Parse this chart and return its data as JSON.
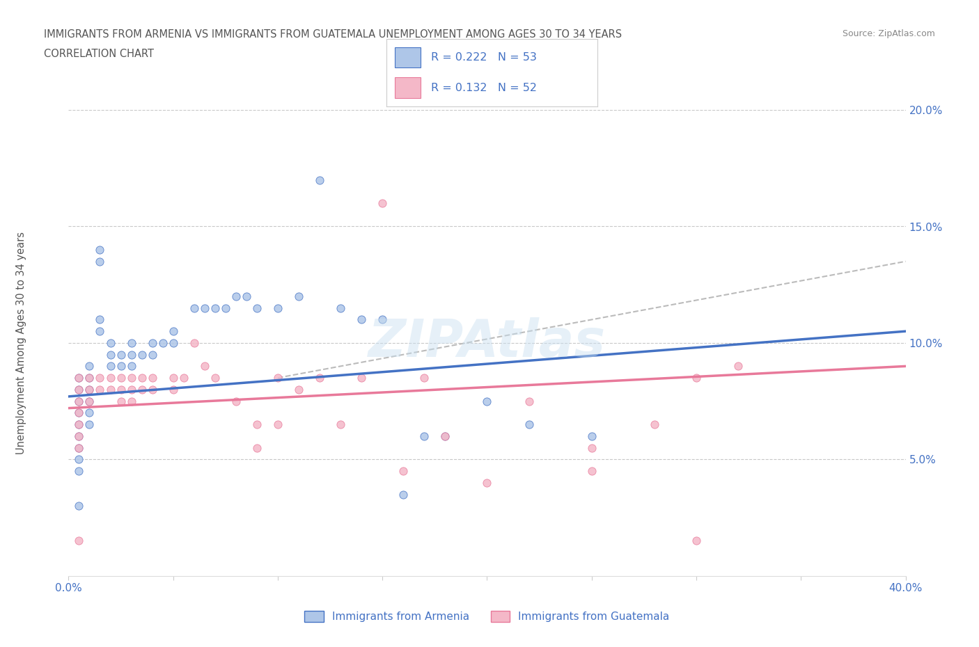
{
  "title_line1": "IMMIGRANTS FROM ARMENIA VS IMMIGRANTS FROM GUATEMALA UNEMPLOYMENT AMONG AGES 30 TO 34 YEARS",
  "title_line2": "CORRELATION CHART",
  "source_text": "Source: ZipAtlas.com",
  "ylabel": "Unemployment Among Ages 30 to 34 years",
  "xlim": [
    0.0,
    0.4
  ],
  "ylim": [
    0.0,
    0.2
  ],
  "xticks": [
    0.0,
    0.05,
    0.1,
    0.15,
    0.2,
    0.25,
    0.3,
    0.35,
    0.4
  ],
  "yticks_right": [
    0.05,
    0.1,
    0.15,
    0.2
  ],
  "ytick_right_labels": [
    "5.0%",
    "10.0%",
    "15.0%",
    "20.0%"
  ],
  "armenia_color": "#aec6e8",
  "guatemala_color": "#f4b8c8",
  "armenia_line_color": "#4472c4",
  "guatemala_line_color": "#e8799a",
  "dashed_line_color": "#bbbbbb",
  "R_armenia": 0.222,
  "N_armenia": 53,
  "R_guatemala": 0.132,
  "N_guatemala": 52,
  "legend_label_armenia": "Immigrants from Armenia",
  "legend_label_guatemala": "Immigrants from Guatemala",
  "watermark": "ZIPAtlas",
  "background_color": "#ffffff",
  "grid_color": "#c8c8c8",
  "title_color": "#555555",
  "axis_label_color": "#4472c4",
  "armenia_scatter": [
    [
      0.005,
      0.085
    ],
    [
      0.005,
      0.08
    ],
    [
      0.005,
      0.075
    ],
    [
      0.005,
      0.07
    ],
    [
      0.005,
      0.065
    ],
    [
      0.005,
      0.06
    ],
    [
      0.005,
      0.055
    ],
    [
      0.005,
      0.05
    ],
    [
      0.005,
      0.045
    ],
    [
      0.01,
      0.09
    ],
    [
      0.01,
      0.085
    ],
    [
      0.01,
      0.08
    ],
    [
      0.01,
      0.075
    ],
    [
      0.01,
      0.07
    ],
    [
      0.01,
      0.065
    ],
    [
      0.015,
      0.14
    ],
    [
      0.015,
      0.135
    ],
    [
      0.015,
      0.11
    ],
    [
      0.015,
      0.105
    ],
    [
      0.02,
      0.1
    ],
    [
      0.02,
      0.095
    ],
    [
      0.02,
      0.09
    ],
    [
      0.025,
      0.095
    ],
    [
      0.025,
      0.09
    ],
    [
      0.03,
      0.1
    ],
    [
      0.03,
      0.095
    ],
    [
      0.03,
      0.09
    ],
    [
      0.035,
      0.095
    ],
    [
      0.04,
      0.1
    ],
    [
      0.04,
      0.095
    ],
    [
      0.045,
      0.1
    ],
    [
      0.05,
      0.105
    ],
    [
      0.05,
      0.1
    ],
    [
      0.06,
      0.115
    ],
    [
      0.065,
      0.115
    ],
    [
      0.07,
      0.115
    ],
    [
      0.075,
      0.115
    ],
    [
      0.08,
      0.12
    ],
    [
      0.085,
      0.12
    ],
    [
      0.09,
      0.115
    ],
    [
      0.1,
      0.115
    ],
    [
      0.11,
      0.12
    ],
    [
      0.12,
      0.17
    ],
    [
      0.13,
      0.115
    ],
    [
      0.14,
      0.11
    ],
    [
      0.15,
      0.11
    ],
    [
      0.16,
      0.035
    ],
    [
      0.17,
      0.06
    ],
    [
      0.18,
      0.06
    ],
    [
      0.2,
      0.075
    ],
    [
      0.22,
      0.065
    ],
    [
      0.25,
      0.06
    ],
    [
      0.005,
      0.03
    ]
  ],
  "guatemala_scatter": [
    [
      0.005,
      0.085
    ],
    [
      0.005,
      0.08
    ],
    [
      0.005,
      0.075
    ],
    [
      0.005,
      0.07
    ],
    [
      0.005,
      0.065
    ],
    [
      0.005,
      0.06
    ],
    [
      0.005,
      0.055
    ],
    [
      0.01,
      0.085
    ],
    [
      0.01,
      0.08
    ],
    [
      0.01,
      0.075
    ],
    [
      0.015,
      0.085
    ],
    [
      0.015,
      0.08
    ],
    [
      0.02,
      0.085
    ],
    [
      0.02,
      0.08
    ],
    [
      0.025,
      0.085
    ],
    [
      0.025,
      0.08
    ],
    [
      0.025,
      0.075
    ],
    [
      0.03,
      0.085
    ],
    [
      0.03,
      0.08
    ],
    [
      0.03,
      0.075
    ],
    [
      0.035,
      0.085
    ],
    [
      0.035,
      0.08
    ],
    [
      0.04,
      0.085
    ],
    [
      0.04,
      0.08
    ],
    [
      0.05,
      0.085
    ],
    [
      0.05,
      0.08
    ],
    [
      0.055,
      0.085
    ],
    [
      0.06,
      0.1
    ],
    [
      0.065,
      0.09
    ],
    [
      0.07,
      0.085
    ],
    [
      0.08,
      0.075
    ],
    [
      0.09,
      0.065
    ],
    [
      0.09,
      0.055
    ],
    [
      0.1,
      0.085
    ],
    [
      0.1,
      0.065
    ],
    [
      0.11,
      0.08
    ],
    [
      0.12,
      0.085
    ],
    [
      0.13,
      0.065
    ],
    [
      0.14,
      0.085
    ],
    [
      0.15,
      0.16
    ],
    [
      0.16,
      0.045
    ],
    [
      0.17,
      0.085
    ],
    [
      0.18,
      0.06
    ],
    [
      0.2,
      0.04
    ],
    [
      0.22,
      0.075
    ],
    [
      0.25,
      0.055
    ],
    [
      0.25,
      0.045
    ],
    [
      0.28,
      0.065
    ],
    [
      0.3,
      0.085
    ],
    [
      0.3,
      0.015
    ],
    [
      0.32,
      0.09
    ],
    [
      0.005,
      0.015
    ]
  ],
  "trendline_armenia": {
    "x_start": 0.0,
    "x_end": 0.4,
    "y_start": 0.077,
    "y_end": 0.105
  },
  "trendline_guatemala": {
    "x_start": 0.0,
    "x_end": 0.4,
    "y_start": 0.072,
    "y_end": 0.09
  },
  "dashed_line": {
    "x_start": 0.1,
    "x_end": 0.4,
    "y_start": 0.085,
    "y_end": 0.135
  }
}
